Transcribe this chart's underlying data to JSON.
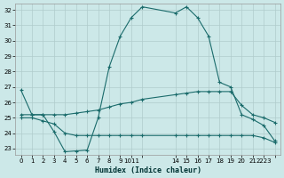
{
  "xlabel": "Humidex (Indice chaleur)",
  "bg_color": "#cce8e8",
  "grid_color": "#b0cccc",
  "line_color": "#1a6b6b",
  "xlim": [
    -0.5,
    23.5
  ],
  "ylim": [
    22.6,
    32.4
  ],
  "xtick_positions": [
    0,
    1,
    2,
    3,
    4,
    5,
    6,
    7,
    8,
    9,
    10,
    11,
    14,
    15,
    16,
    17,
    18,
    19,
    20,
    21,
    22,
    23
  ],
  "xtick_labels": [
    "0",
    "1",
    "2",
    "3",
    "4",
    "5",
    "6",
    "7",
    "8",
    "9",
    "1011",
    "",
    "14",
    "15",
    "16",
    "17",
    "18",
    "19",
    "20",
    "21",
    "2223",
    ""
  ],
  "yticks": [
    23,
    24,
    25,
    26,
    27,
    28,
    29,
    30,
    31,
    32
  ],
  "line1_x": [
    0,
    1,
    2,
    3,
    4,
    5,
    6,
    7,
    8,
    9,
    10,
    11,
    14,
    15,
    16,
    17,
    18,
    19,
    20,
    21,
    22,
    23
  ],
  "line1_y": [
    26.8,
    25.2,
    25.2,
    24.1,
    22.8,
    22.85,
    22.9,
    25.0,
    28.3,
    30.3,
    31.5,
    32.2,
    31.8,
    32.2,
    31.5,
    30.3,
    27.3,
    27.0,
    25.2,
    24.9,
    24.5,
    23.5
  ],
  "line2_x": [
    0,
    1,
    2,
    3,
    4,
    5,
    6,
    7,
    8,
    9,
    10,
    11,
    14,
    15,
    16,
    17,
    18,
    19,
    20,
    21,
    22,
    23
  ],
  "line2_y": [
    25.2,
    25.2,
    25.2,
    25.2,
    25.2,
    25.3,
    25.4,
    25.5,
    25.7,
    25.9,
    26.0,
    26.2,
    26.5,
    26.6,
    26.7,
    26.7,
    26.7,
    26.7,
    25.8,
    25.2,
    25.0,
    24.7
  ],
  "line3_x": [
    0,
    1,
    2,
    3,
    4,
    5,
    6,
    7,
    8,
    9,
    10,
    11,
    14,
    15,
    16,
    17,
    18,
    19,
    20,
    21,
    22,
    23
  ],
  "line3_y": [
    25.0,
    25.0,
    24.8,
    24.6,
    24.0,
    23.85,
    23.85,
    23.85,
    23.85,
    23.85,
    23.85,
    23.85,
    23.85,
    23.85,
    23.85,
    23.85,
    23.85,
    23.85,
    23.85,
    23.85,
    23.7,
    23.4
  ]
}
